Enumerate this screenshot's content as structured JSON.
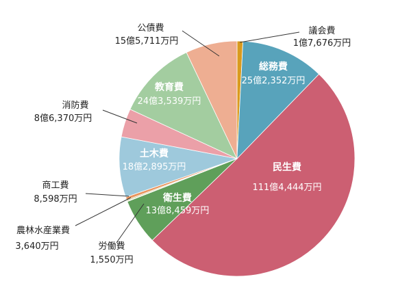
{
  "chart_data": {
    "type": "pie",
    "unit": "万円",
    "start_angle_deg": 0,
    "direction": "clockwise",
    "slices": [
      {
        "name": "議会費",
        "value": 17676,
        "value_label": "1億7,676万円",
        "color": "#d99a1e"
      },
      {
        "name": "総務費",
        "value": 252352,
        "value_label": "25億2,352万円",
        "color": "#58a3bb"
      },
      {
        "name": "民生費",
        "value": 1114444,
        "value_label": "111億4,444万円",
        "color": "#cc5f72"
      },
      {
        "name": "衛生費",
        "value": 138459,
        "value_label": "13億8,459万円",
        "color": "#5f9f5a"
      },
      {
        "name": "労働費",
        "value": 1550,
        "value_label": "1,550万円",
        "color": "#e0a070"
      },
      {
        "name": "農林水産業費",
        "value": 3640,
        "value_label": "3,640万円",
        "color": "#c2c27a"
      },
      {
        "name": "商工費",
        "value": 8598,
        "value_label": "8,598万円",
        "color": "#e8955e"
      },
      {
        "name": "土木費",
        "value": 182895,
        "value_label": "18億2,895万円",
        "color": "#9ec9dc"
      },
      {
        "name": "消防費",
        "value": 86370,
        "value_label": "8億6,370万円",
        "color": "#eba0a8"
      },
      {
        "name": "教育費",
        "value": 243539,
        "value_label": "24億3,539万円",
        "color": "#a3cda0"
      },
      {
        "name": "公債費",
        "value": 155711,
        "value_label": "15億5,711万円",
        "color": "#eeae92"
      }
    ]
  }
}
